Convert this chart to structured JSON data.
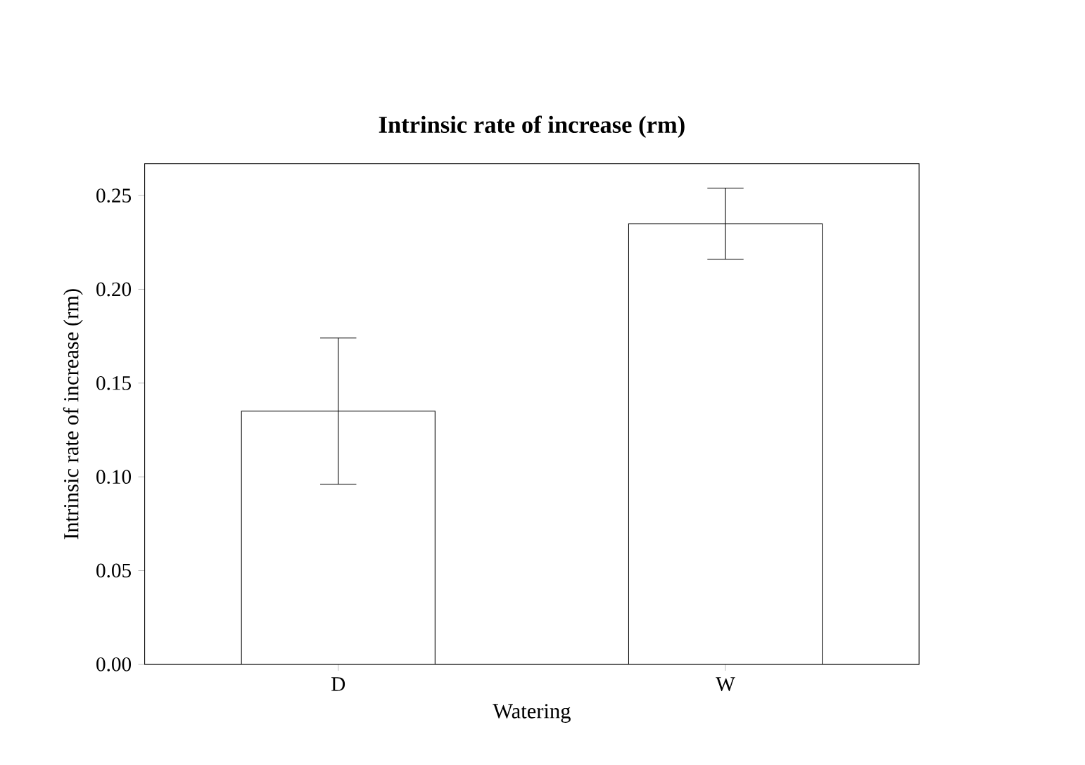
{
  "chart_data": {
    "type": "bar",
    "title": "Intrinsic rate of increase (rm)",
    "xlabel": "Watering",
    "ylabel": "Intrinsic rate of increase (rm)",
    "categories": [
      "D",
      "W"
    ],
    "values": [
      0.135,
      0.235
    ],
    "errors": [
      0.039,
      0.019
    ],
    "color": "#ffffff",
    "ylim": [
      0,
      0.267
    ],
    "yticks": [
      {
        "value": 0,
        "label": "0.00"
      },
      {
        "value": 0.05,
        "label": "0.05"
      },
      {
        "value": 0.1,
        "label": "0.10"
      },
      {
        "value": 0.15,
        "label": "0.15"
      },
      {
        "value": 0.2,
        "label": "0.20"
      },
      {
        "value": 0.25,
        "label": "0.25"
      }
    ],
    "grid": false
  }
}
